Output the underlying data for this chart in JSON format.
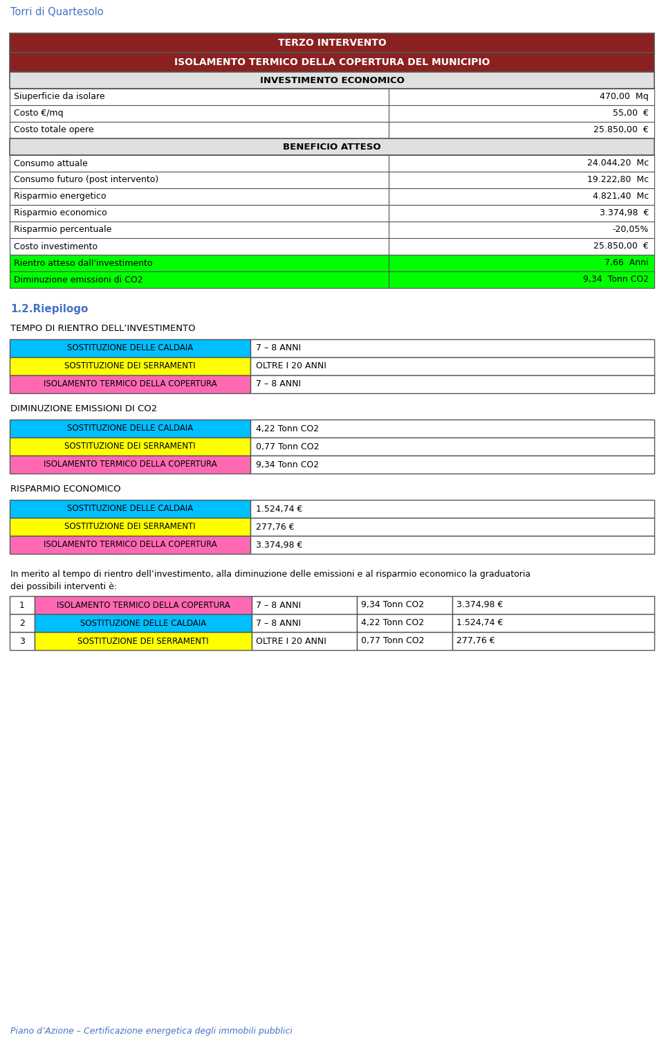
{
  "header_title": "Torri di Quartesolo",
  "header_title_color": "#4472c4",
  "main_title_line1": "TERZO INTERVENTO",
  "main_title_line2": "ISOLAMENTO TERMICO DELLA COPERTURA DEL MUNICIPIO",
  "main_title_bg": "#8B2020",
  "main_title_color": "#ffffff",
  "section_header_bg": "#e0e0e0",
  "section1_header": "INVESTIMENTO ECONOMICO",
  "section2_header": "BENEFICIO ATTESO",
  "rows_inv": [
    [
      "Siuperficie da isolare",
      "470,00  Mq"
    ],
    [
      "Costo €/mq",
      "55,00  €"
    ],
    [
      "Costo totale opere",
      "25.850,00  €"
    ]
  ],
  "rows_ben": [
    [
      "Consumo attuale",
      "24.044,20  Mc"
    ],
    [
      "Consumo futuro (post intervento)",
      "19.222,80  Mc"
    ],
    [
      "Risparmio energetico",
      "4.821,40  Mc"
    ],
    [
      "Risparmio economico",
      "3.374,98  €"
    ],
    [
      "Risparmio percentuale",
      "-20,05%"
    ],
    [
      "Costo investimento",
      "25.850,00  €"
    ],
    [
      "Rientro atteso dall'investimento",
      "7,66  Anni"
    ],
    [
      "Diminuzione emissioni di CO2",
      "9,34  Tonn CO2"
    ]
  ],
  "green_rows_ben": [
    6,
    7
  ],
  "green_color": "#00ff00",
  "riepilogo_title": "1.2.Riepilogo",
  "riepilogo_color": "#4472c4",
  "section_tempo": "TEMPO DI RIENTRO DELL’INVESTIMENTO",
  "tempo_rows": [
    [
      "SOSTITUZIONE DELLE CALDAIA",
      "7 – 8 ANNI",
      "#00bfff"
    ],
    [
      "SOSTITUZIONE DEI SERRAMENTI",
      "OLTRE I 20 ANNI",
      "#ffff00"
    ],
    [
      "ISOLAMENTO TERMICO DELLA COPERTURA",
      "7 – 8 ANNI",
      "#ff69b4"
    ]
  ],
  "section_emissioni": "DIMINUZIONE EMISSIONI DI CO2",
  "emissioni_rows": [
    [
      "SOSTITUZIONE DELLE CALDAIA",
      "4,22 Tonn CO2",
      "#00bfff"
    ],
    [
      "SOSTITUZIONE DEI SERRAMENTI",
      "0,77 Tonn CO2",
      "#ffff00"
    ],
    [
      "ISOLAMENTO TERMICO DELLA COPERTURA",
      "9,34 Tonn CO2",
      "#ff69b4"
    ]
  ],
  "section_risparmio": "RISPARMIO ECONOMICO",
  "risparmio_rows": [
    [
      "SOSTITUZIONE DELLE CALDAIA",
      "1.524,74 €",
      "#00bfff"
    ],
    [
      "SOSTITUZIONE DEI SERRAMENTI",
      "277,76 €",
      "#ffff00"
    ],
    [
      "ISOLAMENTO TERMICO DELLA COPERTURA",
      "3.374,98 €",
      "#ff69b4"
    ]
  ],
  "text_para_line1": "In merito al tempo di rientro dell’investimento, alla diminuzione delle emissioni e al risparmio economico la graduatoria",
  "text_para_line2": "dei possibili interventi è:",
  "ranking_rows": [
    [
      "1",
      "ISOLAMENTO TERMICO DELLA COPERTURA",
      "7 – 8 ANNI",
      "9,34 Tonn CO2",
      "3.374,98 €",
      "#ff69b4"
    ],
    [
      "2",
      "SOSTITUZIONE DELLE CALDAIA",
      "7 – 8 ANNI",
      "4,22 Tonn CO2",
      "1.524,74 €",
      "#00bfff"
    ],
    [
      "3",
      "SOSTITUZIONE DEI SERRAMENTI",
      "OLTRE I 20 ANNI",
      "0,77 Tonn CO2",
      "277,76 €",
      "#ffff00"
    ]
  ],
  "footer_text": "Piano d’Azione – Certificazione energetica degli immobili pubblici",
  "footer_color": "#4472c4",
  "bg_color": "#ffffff",
  "border_color": "#555555",
  "text_color": "#000000"
}
